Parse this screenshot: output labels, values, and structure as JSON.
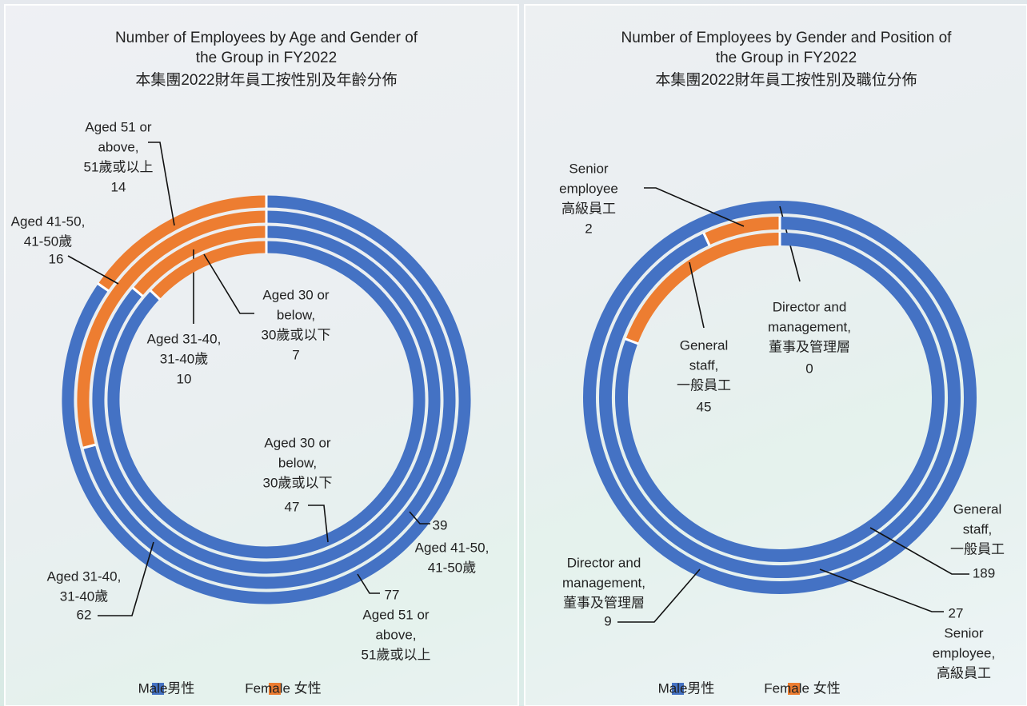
{
  "chart_data": [
    {
      "type": "donut",
      "title": [
        "Number of Employees by Age and Gender of",
        "the Group in FY2022",
        "本集團2022財年員工按性別及年齡分佈"
      ],
      "series": [
        {
          "name": "Male男性",
          "color": "#4472c4"
        },
        {
          "name": "Female 女性",
          "color": "#ed7d31"
        }
      ],
      "rings": [
        {
          "values": [
            77,
            14
          ],
          "labels": [
            [
              "Aged 51 or",
              "above,",
              "51歲或以上"
            ],
            [
              "Aged 51 or",
              "above,",
              "51歲或以上"
            ]
          ]
        },
        {
          "values": [
            39,
            16
          ],
          "labels": [
            [
              "Aged 41-50,",
              "41-50歲"
            ],
            [
              "Aged 41-50,",
              "41-50歲"
            ]
          ]
        },
        {
          "values": [
            62,
            10
          ],
          "labels": [
            [
              "Aged 31-40,",
              "31-40歲"
            ],
            [
              "Aged 31-40,",
              "31-40歲"
            ]
          ]
        },
        {
          "values": [
            47,
            7
          ],
          "labels": [
            [
              "Aged 30 or",
              "below,",
              "30歲或以下"
            ],
            [
              "Aged 30 or",
              "below,",
              "30歲或以下"
            ]
          ]
        }
      ]
    },
    {
      "type": "donut",
      "title": [
        "Number of Employees by Gender and Position of",
        "the Group in FY2022",
        "本集團2022財年員工按性別及職位分佈"
      ],
      "series": [
        {
          "name": "Male男性",
          "color": "#4472c4"
        },
        {
          "name": "Female 女性",
          "color": "#ed7d31"
        }
      ],
      "rings": [
        {
          "values": [
            9,
            0
          ],
          "labels": [
            [
              "Director and",
              "management,",
              "董事及管理層"
            ],
            [
              "Director and",
              "management,",
              "董事及管理層"
            ]
          ]
        },
        {
          "values": [
            27,
            2
          ],
          "labels": [
            [
              "Senior",
              "employee,",
              "高級員工"
            ],
            [
              "Senior",
              "employee",
              "高級員工"
            ]
          ]
        },
        {
          "values": [
            189,
            45
          ],
          "labels": [
            [
              "General",
              "staff,",
              "一般員工"
            ],
            [
              "General",
              "staff,",
              "一般員工"
            ]
          ]
        }
      ]
    }
  ]
}
